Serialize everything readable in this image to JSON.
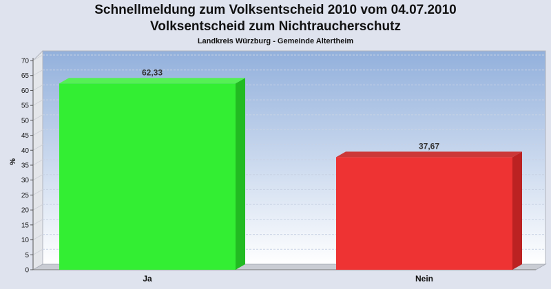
{
  "chart_data": {
    "type": "bar",
    "title": "Schnellmeldung zum Volksentscheid 2010 vom 04.07.2010",
    "title2": "Volksentscheid zum Nichtraucherschutz",
    "subtitle": "Landkreis Würzburg - Gemeinde Altertheim",
    "ylabel": "%",
    "ylim": [
      0,
      70
    ],
    "yticks": [
      0,
      5,
      10,
      15,
      20,
      25,
      30,
      35,
      40,
      45,
      50,
      55,
      60,
      65,
      70
    ],
    "categories": [
      "Ja",
      "Nein"
    ],
    "values": [
      62.33,
      37.67
    ],
    "value_labels": [
      "62,33",
      "37,67"
    ],
    "colors": [
      "#33ee33",
      "#ee3333"
    ],
    "side_colors": [
      "#22bb22",
      "#bb2222"
    ],
    "top_colors": [
      "#55f055",
      "#cc3838"
    ],
    "plot_background_top": "#92b0dc",
    "plot_background_bottom": "#ffffff",
    "grid": true
  }
}
